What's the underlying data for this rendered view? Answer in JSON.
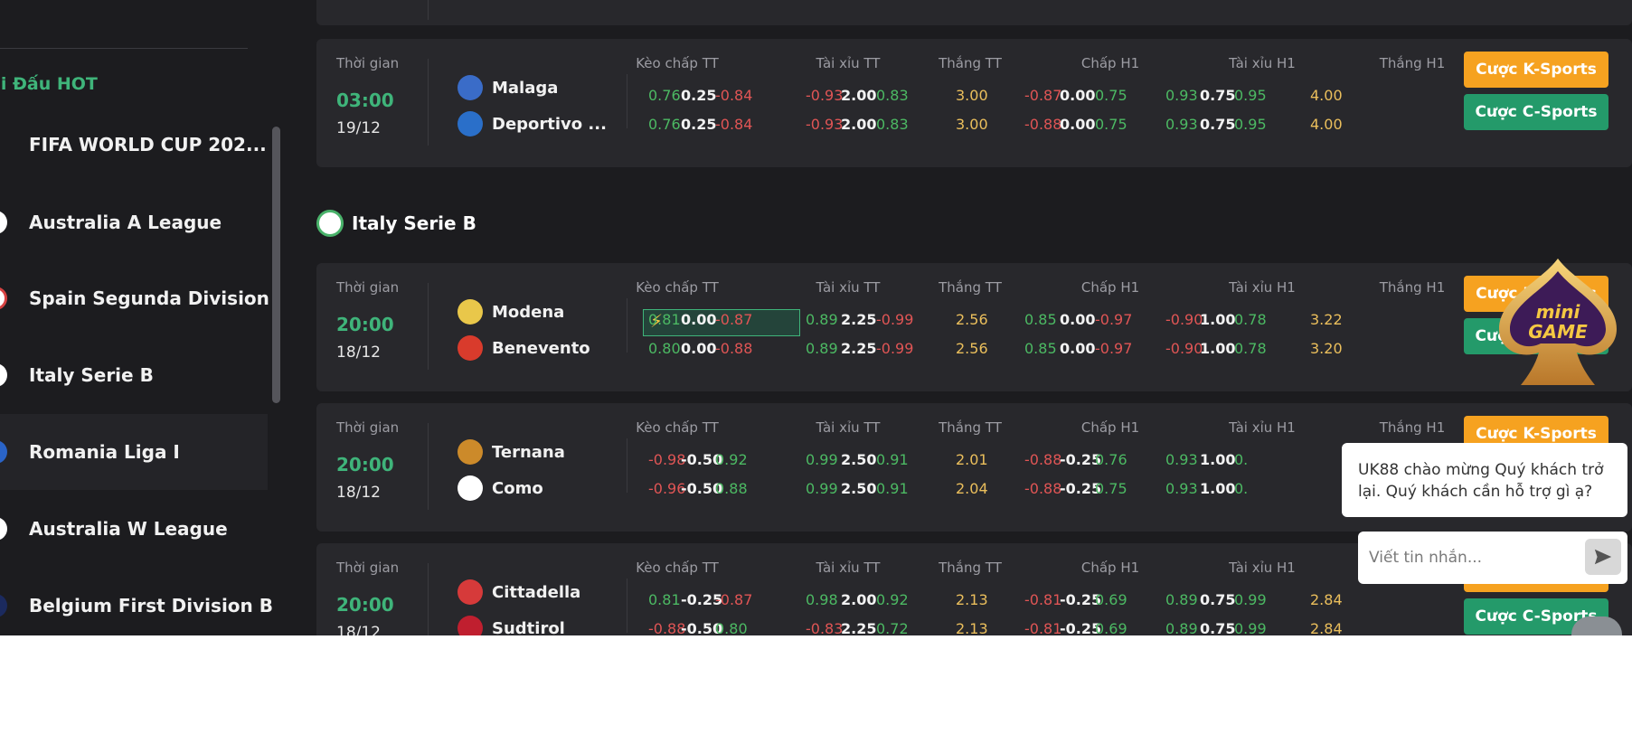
{
  "sidebar": {
    "title": "ải Đấu HOT",
    "items": [
      {
        "label": "FIFA WORLD CUP 202..."
      },
      {
        "label": "Australia A League"
      },
      {
        "label": "Spain Segunda Division"
      },
      {
        "label": "Italy Serie B"
      },
      {
        "label": "Romania Liga I"
      },
      {
        "label": "Australia W League"
      },
      {
        "label": "Belgium First Division B"
      }
    ]
  },
  "headers": {
    "time": "Thời gian",
    "hdp_ft": "Kèo chấp TT",
    "ou_ft": "Tài xỉu TT",
    "win_ft": "Thắng TT",
    "hdp_h1": "Chấp H1",
    "ou_h1": "Tài xỉu H1",
    "win_h1": "Thắng H1"
  },
  "buttons": {
    "k_sports": "Cược K-Sports",
    "c_sports": "Cược C-Sports"
  },
  "league": {
    "name": "Italy Serie B"
  },
  "matches": [
    {
      "time": "03:00",
      "date": "19/12",
      "home": "Malaga",
      "away": "Deportivo ...",
      "rows": [
        [
          "0.76",
          "0.25",
          "-0.84",
          "-0.93",
          "2.00",
          "0.83",
          "3.00",
          "-0.87",
          "0.00",
          "0.75",
          "0.93",
          "0.75",
          "0.95",
          "4.00"
        ],
        [
          "0.76",
          "0.25",
          "-0.84",
          "-0.93",
          "2.00",
          "0.83",
          "3.00",
          "-0.88",
          "0.00",
          "0.75",
          "0.93",
          "0.75",
          "0.95",
          "4.00"
        ]
      ]
    },
    {
      "time": "20:00",
      "date": "18/12",
      "home": "Modena",
      "away": "Benevento",
      "rows": [
        [
          "0.81",
          "0.00",
          "-0.87",
          "0.89",
          "2.25",
          "-0.99",
          "2.56",
          "0.85",
          "0.00",
          "-0.97",
          "-0.90",
          "1.00",
          "0.78",
          "3.22"
        ],
        [
          "0.80",
          "0.00",
          "-0.88",
          "0.89",
          "2.25",
          "-0.99",
          "2.56",
          "0.85",
          "0.00",
          "-0.97",
          "-0.90",
          "1.00",
          "0.78",
          "3.20"
        ]
      ]
    },
    {
      "time": "20:00",
      "date": "18/12",
      "home": "Ternana",
      "away": "Como",
      "rows": [
        [
          "-0.98",
          "-0.50",
          "0.92",
          "0.99",
          "2.50",
          "0.91",
          "2.01",
          "-0.88",
          "-0.25",
          "0.76",
          "0.93",
          "1.00",
          "0.",
          ""
        ],
        [
          "-0.96",
          "-0.50",
          "0.88",
          "0.99",
          "2.50",
          "0.91",
          "2.04",
          "-0.88",
          "-0.25",
          "0.75",
          "0.93",
          "1.00",
          "0.",
          ""
        ]
      ]
    },
    {
      "time": "20:00",
      "date": "18/12",
      "home": "Cittadella",
      "away": "Sudtirol",
      "rows": [
        [
          "0.81",
          "-0.25",
          "-0.87",
          "0.98",
          "2.00",
          "0.92",
          "2.13",
          "-0.81",
          "-0.25",
          "0.69",
          "0.89",
          "0.75",
          "0.99",
          "2.84"
        ],
        [
          "-0.88",
          "-0.50",
          "0.80",
          "-0.83",
          "2.25",
          "0.72",
          "2.13",
          "-0.81",
          "-0.25",
          "0.69",
          "0.89",
          "0.75",
          "0.99",
          "2.84"
        ]
      ]
    }
  ],
  "chat": {
    "message": "UK88 chào mừng Quý khách trở lại. Quý khách cần hỗ trợ gì ạ?",
    "placeholder": "Viết tin nhắn..."
  },
  "minigame": {
    "line1": "mini",
    "line2": "GAME"
  },
  "colors": {
    "green": "#3fb47a",
    "orange": "#f6a220",
    "teal": "#249a6a",
    "bg": "#1c1c1f",
    "card": "#28282c"
  }
}
